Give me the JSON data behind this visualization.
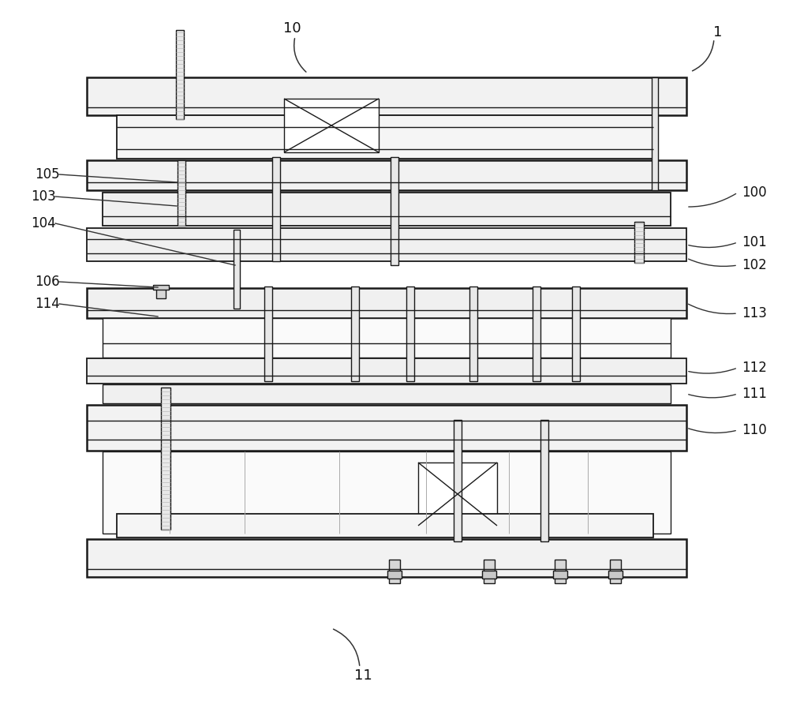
{
  "bg_color": "#ffffff",
  "lc": "#1a1a1a",
  "lw": 1.0,
  "lw_thick": 1.8,
  "lw_med": 1.3,
  "fig_w": 10.0,
  "fig_h": 9.11
}
